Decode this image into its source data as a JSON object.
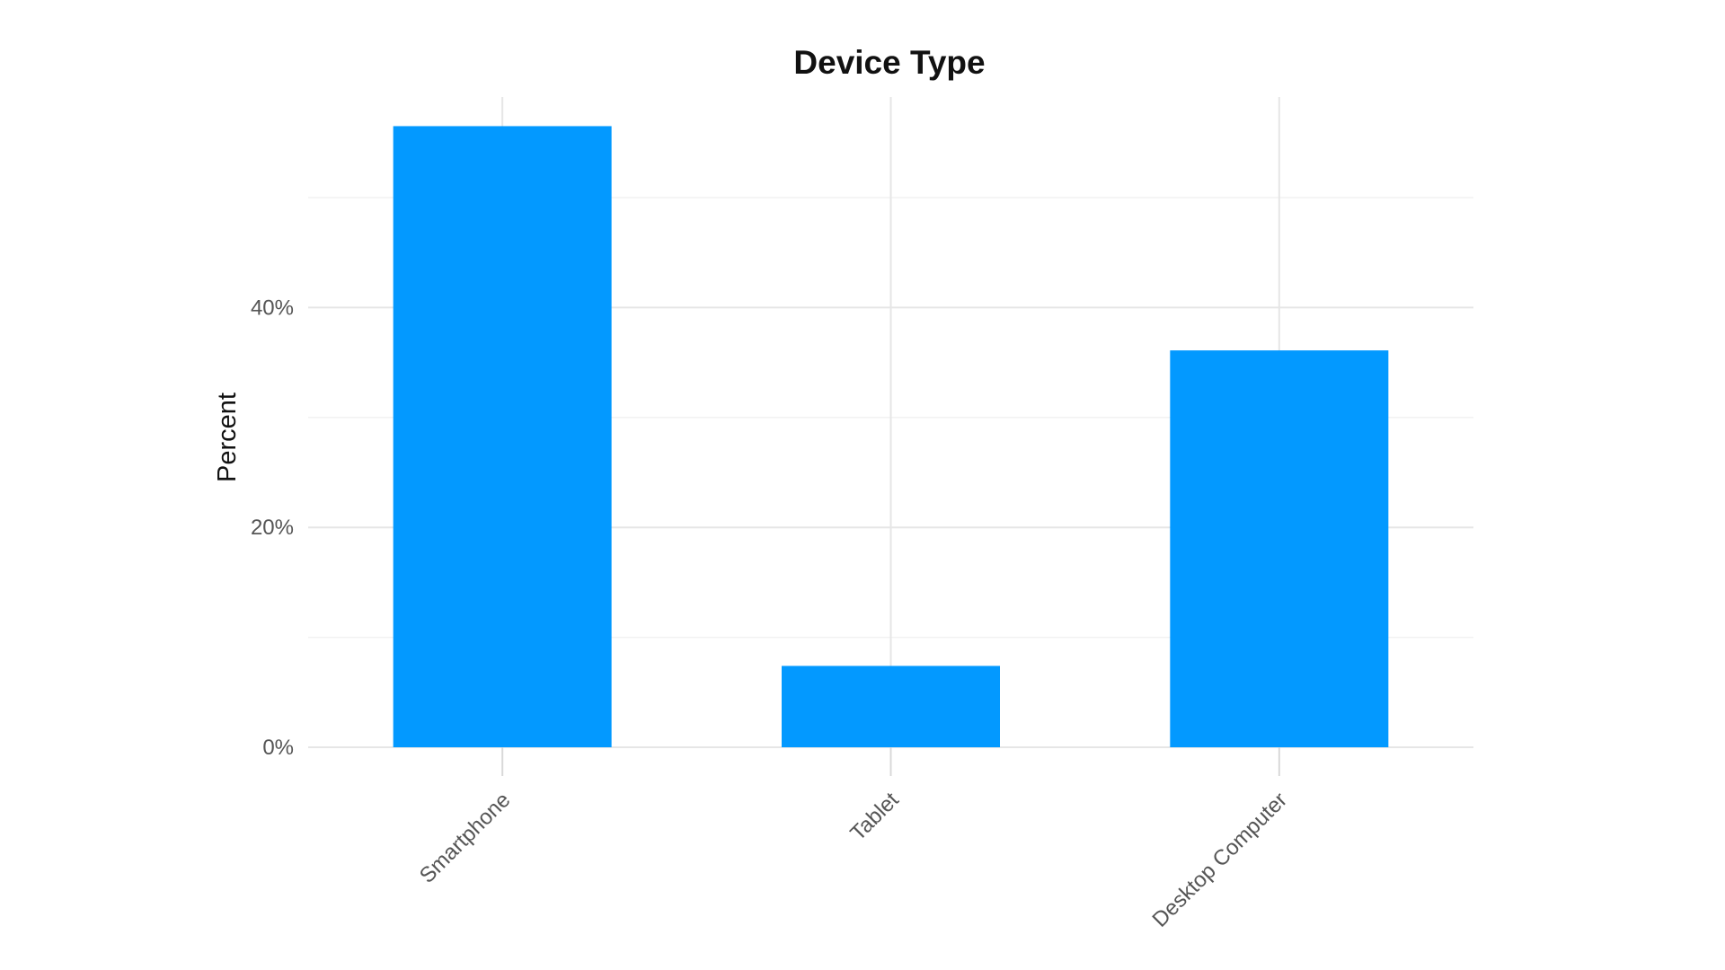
{
  "chart_data": {
    "type": "bar",
    "title": "Device Type",
    "xlabel": "",
    "ylabel": "Percent",
    "categories": [
      "Smartphone",
      "Tablet",
      "Desktop Computer"
    ],
    "values": [
      56.5,
      7.4,
      36.1
    ],
    "value_unit": "%",
    "ylim": [
      0,
      59
    ],
    "yticks": [
      0,
      20,
      40
    ],
    "ytick_labels": [
      "0%",
      "20%",
      "40%"
    ],
    "y_minor_ticks": [
      10,
      30,
      50
    ],
    "grid": true,
    "legend": "none",
    "bar_color": "#0399FF"
  }
}
